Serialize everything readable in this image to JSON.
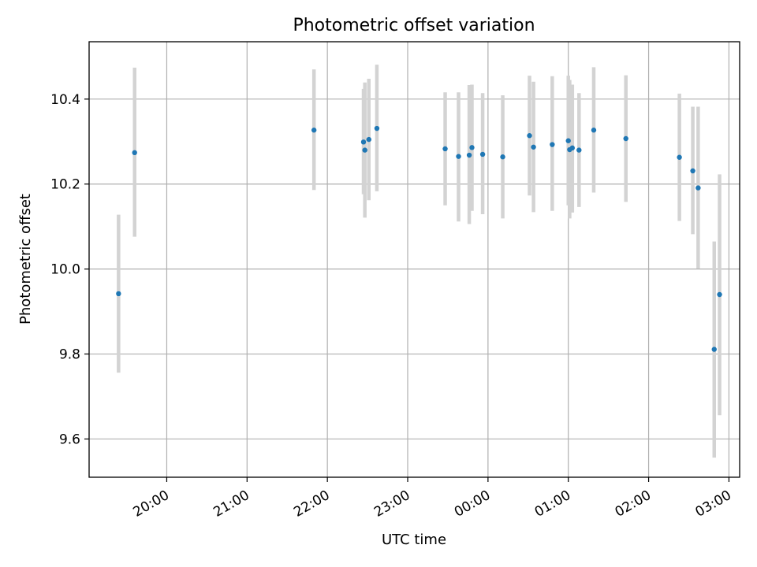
{
  "chart_data": {
    "type": "scatter",
    "title": "Photometric offset variation",
    "xlabel": "UTC time",
    "ylabel": "Photometric offset",
    "xlim": [
      "19:02",
      "03:08"
    ],
    "ylim": [
      9.51,
      10.535
    ],
    "grid": true,
    "legend": null,
    "x_ticks": [
      "20:00",
      "21:00",
      "22:00",
      "23:00",
      "00:00",
      "01:00",
      "02:00",
      "03:00"
    ],
    "y_ticks": [
      "9.6",
      "9.8",
      "10.0",
      "10.2",
      "10.4"
    ],
    "series": [
      {
        "color": "#1f77b4",
        "errorbar_color": "#d3d3d3",
        "points": [
          {
            "x": "19:24",
            "y": 9.942,
            "ylow": 9.756,
            "yhigh": 10.128
          },
          {
            "x": "19:36",
            "y": 10.274,
            "ylow": 10.076,
            "yhigh": 10.474
          },
          {
            "x": "21:50",
            "y": 10.327,
            "ylow": 10.186,
            "yhigh": 10.47
          },
          {
            "x": "22:27",
            "y": 10.299,
            "ylow": 10.176,
            "yhigh": 10.424
          },
          {
            "x": "22:28",
            "y": 10.28,
            "ylow": 10.121,
            "yhigh": 10.439
          },
          {
            "x": "22:31",
            "y": 10.305,
            "ylow": 10.162,
            "yhigh": 10.448
          },
          {
            "x": "22:37",
            "y": 10.331,
            "ylow": 10.183,
            "yhigh": 10.481
          },
          {
            "x": "23:28",
            "y": 10.283,
            "ylow": 10.15,
            "yhigh": 10.416
          },
          {
            "x": "23:38",
            "y": 10.265,
            "ylow": 10.112,
            "yhigh": 10.416
          },
          {
            "x": "23:46",
            "y": 10.268,
            "ylow": 10.106,
            "yhigh": 10.433
          },
          {
            "x": "23:48",
            "y": 10.286,
            "ylow": 10.137,
            "yhigh": 10.434
          },
          {
            "x": "23:56",
            "y": 10.27,
            "ylow": 10.129,
            "yhigh": 10.414
          },
          {
            "x": "00:11",
            "y": 10.264,
            "ylow": 10.119,
            "yhigh": 10.409
          },
          {
            "x": "00:31",
            "y": 10.314,
            "ylow": 10.173,
            "yhigh": 10.455
          },
          {
            "x": "00:34",
            "y": 10.287,
            "ylow": 10.134,
            "yhigh": 10.441
          },
          {
            "x": "00:48",
            "y": 10.293,
            "ylow": 10.137,
            "yhigh": 10.454
          },
          {
            "x": "01:00",
            "y": 10.302,
            "ylow": 10.15,
            "yhigh": 10.455
          },
          {
            "x": "01:01",
            "y": 10.281,
            "ylow": 10.119,
            "yhigh": 10.445
          },
          {
            "x": "01:03",
            "y": 10.285,
            "ylow": 10.133,
            "yhigh": 10.434
          },
          {
            "x": "01:08",
            "y": 10.28,
            "ylow": 10.146,
            "yhigh": 10.414
          },
          {
            "x": "01:19",
            "y": 10.327,
            "ylow": 10.18,
            "yhigh": 10.475
          },
          {
            "x": "01:43",
            "y": 10.307,
            "ylow": 10.158,
            "yhigh": 10.456
          },
          {
            "x": "02:23",
            "y": 10.263,
            "ylow": 10.113,
            "yhigh": 10.413
          },
          {
            "x": "02:33",
            "y": 10.231,
            "ylow": 10.082,
            "yhigh": 10.382
          },
          {
            "x": "02:37",
            "y": 10.191,
            "ylow": 10.001,
            "yhigh": 10.382
          },
          {
            "x": "02:49",
            "y": 9.811,
            "ylow": 9.556,
            "yhigh": 10.065
          },
          {
            "x": "02:53",
            "y": 9.94,
            "ylow": 9.656,
            "yhigh": 10.223
          }
        ]
      }
    ]
  }
}
